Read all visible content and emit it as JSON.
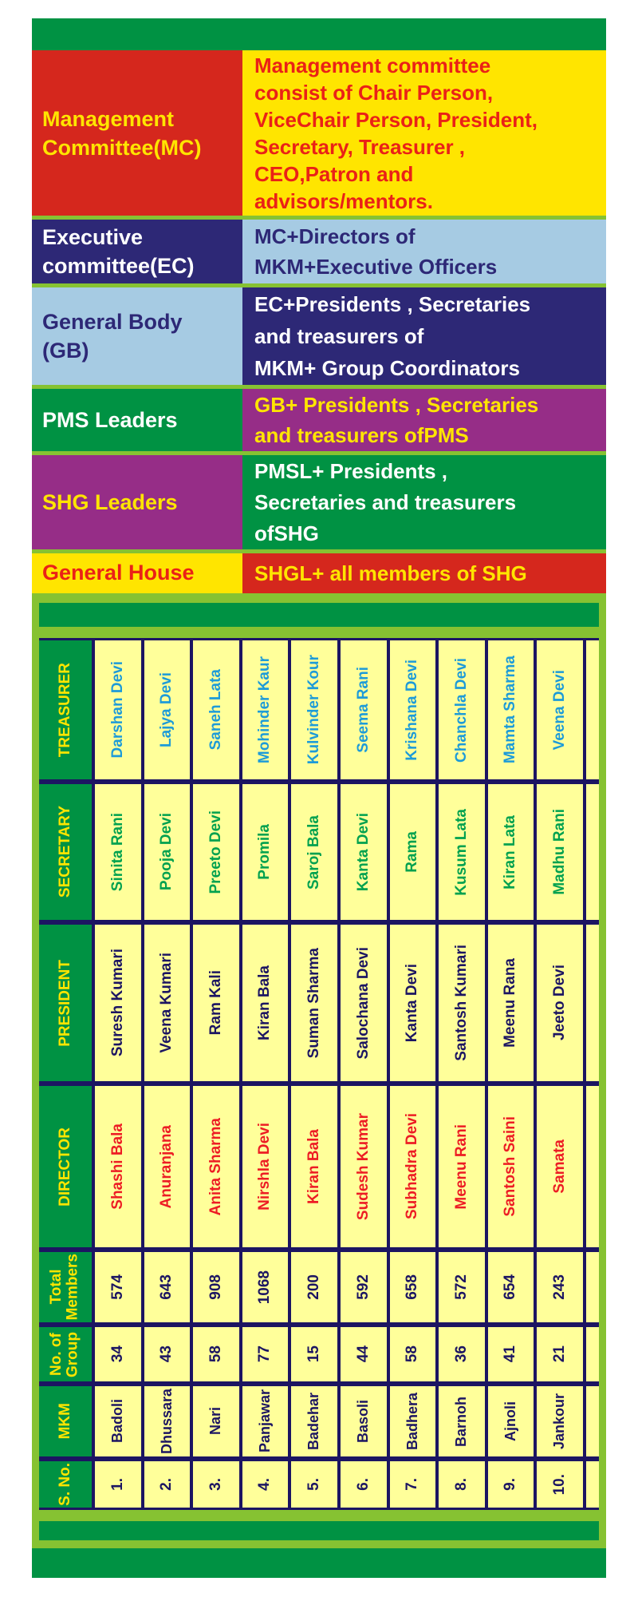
{
  "palette": {
    "dark_green": "#009243",
    "light_green": "#86c232",
    "red": "#d5271d",
    "bright_yellow": "#ffe500",
    "navy": "#2d2876",
    "light_blue": "#a6cbe3",
    "purple": "#962d87",
    "cell_yellow": "#ffff9a",
    "grid_navy": "#1c1562",
    "name_blue": "#1d9bd8",
    "name_green": "#00a14f",
    "name_red": "#ed1c24",
    "white": "#ffffff"
  },
  "hierarchy": {
    "rows": [
      {
        "id": "mc",
        "label": "Management\nCommittee(MC)",
        "desc": "Management committee\nconsist of  Chair Person,\nViceChair Person, President,\nSecretary, Treasurer ,\nCEO,Patron and\nadvisors/mentors."
      },
      {
        "id": "ec",
        "label": "Executive\ncommittee(EC)",
        "desc": "MC+Directors of\nMKM+Executive Officers"
      },
      {
        "id": "gb",
        "label": "General Body\n(GB)",
        "desc": "EC+Presidents , Secretaries\nand treasurers of\nMKM+ Group Coordinators"
      },
      {
        "id": "pms",
        "label": "PMS Leaders",
        "desc": "GB+ Presidents , Secretaries\nand treasurers ofPMS"
      },
      {
        "id": "shg",
        "label": "SHG Leaders",
        "desc": "PMSL+ Presidents ,\nSecretaries and treasurers\nofSHG"
      },
      {
        "id": "gh",
        "label": "General House",
        "desc": "SHGL+ all members of SHG"
      }
    ]
  },
  "table": {
    "orientation": "rotated-90-text-reads-bottom-to-top",
    "bands": [
      {
        "key": "treasurer",
        "label": "TREASURER",
        "values": [
          "Darshan Devi",
          "Lajya Devi",
          "Saneh Lata",
          "Mohinder Kaur",
          "Kulvinder Kour",
          "Seema Rani",
          "Krishana Devi",
          "Chanchla Devi",
          "Mamta Sharma",
          "Veena Devi"
        ]
      },
      {
        "key": "secretary",
        "label": "SECRETARY",
        "values": [
          "Sinita Rani",
          "Pooja Devi",
          "Preeto Devi",
          "Promila",
          "Saroj Bala",
          "Kanta Devi",
          "Rama",
          "Kusum Lata",
          "Kiran Lata",
          "Madhu Rani"
        ]
      },
      {
        "key": "president",
        "label": "PRESIDENT",
        "values": [
          "Suresh Kumari",
          "Veena Kumari",
          "Ram Kali",
          "Kiran Bala",
          "Suman Sharma",
          "Salochana Devi",
          "Kanta Devi",
          "Santosh Kumari",
          "Meenu Rana",
          "Jeeto Devi"
        ]
      },
      {
        "key": "director",
        "label": "DIRECTOR",
        "values": [
          "Shashi Bala",
          "Anuranjana",
          "Anita Sharma",
          "Nirshla Devi",
          "Kiran Bala",
          "Sudesh Kumar",
          "Subhadra Devi",
          "Meenu Rani",
          "Santosh Saini",
          "Samata"
        ]
      },
      {
        "key": "total-members",
        "label": "Total\nMembers",
        "values": [
          "574",
          "643",
          "908",
          "1068",
          "200",
          "592",
          "658",
          "572",
          "654",
          "243"
        ]
      },
      {
        "key": "no-of-group",
        "label": "No. of\nGroup",
        "values": [
          "34",
          "43",
          "58",
          "77",
          "15",
          "44",
          "58",
          "36",
          "41",
          "21"
        ]
      },
      {
        "key": "mkm",
        "label": "MKM",
        "values": [
          "Badoli",
          "Dhussara",
          "Nari",
          "Panjawar",
          "Badehar",
          "Basoli",
          "Badhera",
          "Barnoh",
          "Ajnoli",
          "Jankour"
        ]
      },
      {
        "key": "s-no",
        "label": "S. No.",
        "values": [
          "1.",
          "2.",
          "3.",
          "4.",
          "5.",
          "6.",
          "7.",
          "8.",
          "9.",
          "10."
        ]
      }
    ]
  }
}
